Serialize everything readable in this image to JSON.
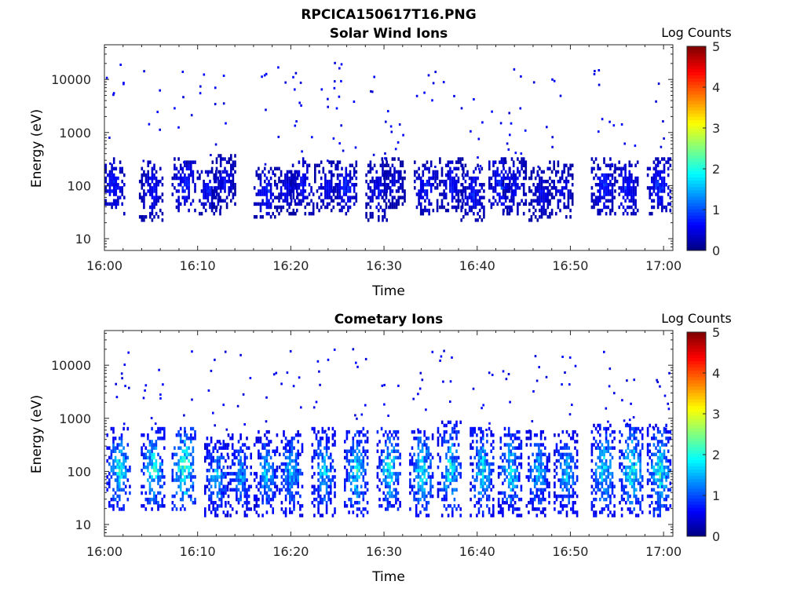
{
  "figure": {
    "title": "RPCICA150617T16.PNG"
  },
  "chart_data": [
    {
      "type": "heatmap",
      "title": "Solar Wind Ions",
      "xlabel": "Time",
      "ylabel": "Energy (eV)",
      "x_tick_labels": [
        "16:00",
        "16:10",
        "16:20",
        "16:30",
        "16:40",
        "16:50",
        "17:00"
      ],
      "x_ticks_minutes": [
        0,
        10,
        20,
        30,
        40,
        50,
        60
      ],
      "xlim_minutes": [
        0,
        61
      ],
      "y_scale": "log",
      "y_tick_labels": [
        "10",
        "100",
        "1000",
        "10000"
      ],
      "y_ticks": [
        10,
        100,
        1000,
        10000
      ],
      "ylim": [
        6,
        45000
      ],
      "colorbar": {
        "label": "Log Counts",
        "ticks": [
          "0",
          "1",
          "2",
          "3",
          "4",
          "5"
        ],
        "range": [
          0,
          5
        ],
        "colormap": "jet"
      },
      "bursts": [
        {
          "t": 0.9,
          "low": 40,
          "high": 250,
          "level": 0.8
        },
        {
          "t": 5.0,
          "low": 30,
          "high": 200,
          "level": 0.7
        },
        {
          "t": 8.5,
          "low": 45,
          "high": 240,
          "level": 0.9
        },
        {
          "t": 11.2,
          "low": 40,
          "high": 160,
          "level": 0.75
        },
        {
          "t": 12.8,
          "low": 50,
          "high": 280,
          "level": 0.6
        },
        {
          "t": 17.3,
          "low": 35,
          "high": 150,
          "level": 0.8
        },
        {
          "t": 19.5,
          "low": 40,
          "high": 180,
          "level": 0.6
        },
        {
          "t": 21.2,
          "low": 40,
          "high": 240,
          "level": 0.7
        },
        {
          "t": 23.8,
          "low": 45,
          "high": 200,
          "level": 0.6
        },
        {
          "t": 25.8,
          "low": 40,
          "high": 210,
          "level": 0.8
        },
        {
          "t": 29.3,
          "low": 30,
          "high": 200,
          "level": 0.7
        },
        {
          "t": 31.0,
          "low": 50,
          "high": 230,
          "level": 0.5
        },
        {
          "t": 34.5,
          "low": 40,
          "high": 200,
          "level": 0.8
        },
        {
          "t": 37.2,
          "low": 45,
          "high": 230,
          "level": 0.7
        },
        {
          "t": 39.5,
          "low": 30,
          "high": 180,
          "level": 0.75
        },
        {
          "t": 42.5,
          "low": 45,
          "high": 230,
          "level": 0.9
        },
        {
          "t": 44.0,
          "low": 40,
          "high": 230,
          "level": 0.7
        },
        {
          "t": 46.8,
          "low": 30,
          "high": 150,
          "level": 0.6
        },
        {
          "t": 49.0,
          "low": 35,
          "high": 200,
          "level": 0.6
        },
        {
          "t": 53.5,
          "low": 40,
          "high": 230,
          "level": 0.8
        },
        {
          "t": 56.0,
          "low": 40,
          "high": 200,
          "level": 0.85
        },
        {
          "t": 59.5,
          "low": 40,
          "high": 250,
          "level": 0.9
        }
      ]
    },
    {
      "type": "heatmap",
      "title": "Cometary Ions",
      "xlabel": "Time",
      "ylabel": "Energy (eV)",
      "x_tick_labels": [
        "16:00",
        "16:10",
        "16:20",
        "16:30",
        "16:40",
        "16:50",
        "17:00"
      ],
      "x_ticks_minutes": [
        0,
        10,
        20,
        30,
        40,
        50,
        60
      ],
      "xlim_minutes": [
        0,
        61
      ],
      "y_scale": "log",
      "y_tick_labels": [
        "10",
        "100",
        "1000",
        "10000"
      ],
      "y_ticks": [
        10,
        100,
        1000,
        10000
      ],
      "ylim": [
        6,
        45000
      ],
      "colorbar": {
        "label": "Log Counts",
        "ticks": [
          "0",
          "1",
          "2",
          "3",
          "4",
          "5"
        ],
        "range": [
          0,
          5
        ],
        "colormap": "jet"
      },
      "bursts": [
        {
          "t": 1.5,
          "low": 25,
          "high": 500,
          "level": 2.0
        },
        {
          "t": 5.2,
          "low": 25,
          "high": 500,
          "level": 2.0
        },
        {
          "t": 8.5,
          "low": 25,
          "high": 500,
          "level": 2.3
        },
        {
          "t": 12.0,
          "low": 20,
          "high": 300,
          "level": 1.6
        },
        {
          "t": 14.5,
          "low": 20,
          "high": 350,
          "level": 1.5
        },
        {
          "t": 17.3,
          "low": 20,
          "high": 400,
          "level": 1.6
        },
        {
          "t": 20.0,
          "low": 20,
          "high": 400,
          "level": 1.7
        },
        {
          "t": 23.5,
          "low": 20,
          "high": 500,
          "level": 1.7
        },
        {
          "t": 27.0,
          "low": 20,
          "high": 500,
          "level": 1.9
        },
        {
          "t": 30.5,
          "low": 25,
          "high": 500,
          "level": 2.0
        },
        {
          "t": 34.0,
          "low": 20,
          "high": 500,
          "level": 2.0
        },
        {
          "t": 37.0,
          "low": 20,
          "high": 600,
          "level": 1.9
        },
        {
          "t": 40.5,
          "low": 20,
          "high": 500,
          "level": 1.8
        },
        {
          "t": 43.5,
          "low": 20,
          "high": 500,
          "level": 1.8
        },
        {
          "t": 46.5,
          "low": 20,
          "high": 400,
          "level": 1.6
        },
        {
          "t": 49.5,
          "low": 20,
          "high": 450,
          "level": 1.7
        },
        {
          "t": 53.5,
          "low": 20,
          "high": 550,
          "level": 1.9
        },
        {
          "t": 56.5,
          "low": 20,
          "high": 550,
          "level": 2.1
        },
        {
          "t": 59.5,
          "low": 20,
          "high": 550,
          "level": 2.0
        }
      ]
    }
  ]
}
